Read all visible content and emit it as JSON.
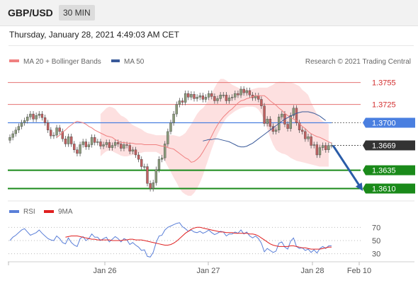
{
  "header": {
    "symbol": "GBP/USD",
    "timeframe": "30 MIN"
  },
  "datetime": "Thursday, January 28, 2021 4:49:03 AM CET",
  "legend": {
    "ma_label": "MA 20 + Bollinger Bands",
    "ma50_label": "MA 50",
    "credit": "Research © 2021 Trading Central",
    "rsi_label": "RSI",
    "rsi_ma_label": "9MA"
  },
  "colors": {
    "ma20": "#f08080",
    "bands_fill": "#fde0e0",
    "ma50": "#3a5a9a",
    "resistance": "#e57373",
    "pivot": "#4a7fe0",
    "support": "#1a8a1a",
    "last_price": "#333333",
    "arrow": "#2a5ca8",
    "rsi": "#5a7fd8",
    "rsi_ma": "#e02020",
    "candle_up": "#8a9a7a",
    "candle_down": "#c06060"
  },
  "chart_data": [
    {
      "type": "candlestick",
      "title": "GBP/USD 30 MIN",
      "ylim": [
        1.3595,
        1.3775
      ],
      "x_ticks": [
        "Jan 26",
        "Jan 27",
        "Jan 28",
        "Feb 10"
      ],
      "levels": [
        {
          "value": 1.3755,
          "label": "1.3755",
          "kind": "resistance"
        },
        {
          "value": 1.3725,
          "label": "1.3725",
          "kind": "resistance"
        },
        {
          "value": 1.37,
          "label": "1.3700",
          "kind": "pivot"
        },
        {
          "value": 1.3669,
          "label": "1.3669",
          "kind": "last"
        },
        {
          "value": 1.3635,
          "label": "1.3635",
          "kind": "support"
        },
        {
          "value": 1.361,
          "label": "1.3610",
          "kind": "support"
        }
      ],
      "close": [
        1.368,
        1.3685,
        1.369,
        1.3695,
        1.37,
        1.3703,
        1.3708,
        1.3712,
        1.3705,
        1.371,
        1.3712,
        1.3707,
        1.37,
        1.369,
        1.3682,
        1.3683,
        1.3693,
        1.3688,
        1.3678,
        1.3671,
        1.3681,
        1.3671,
        1.3663,
        1.3658,
        1.367,
        1.3674,
        1.3667,
        1.367,
        1.368,
        1.3673,
        1.3674,
        1.3668,
        1.367,
        1.3673,
        1.3666,
        1.3669,
        1.3673,
        1.3671,
        1.3665,
        1.367,
        1.3669,
        1.3661,
        1.3663,
        1.3656,
        1.365,
        1.364,
        1.364,
        1.3617,
        1.361,
        1.3618,
        1.3636,
        1.365,
        1.3652,
        1.3671,
        1.3688,
        1.37,
        1.3712,
        1.3725,
        1.373,
        1.3728,
        1.374,
        1.3735,
        1.3739,
        1.3733,
        1.3735,
        1.3737,
        1.3732,
        1.3735,
        1.374,
        1.3736,
        1.373,
        1.3733,
        1.3738,
        1.3738,
        1.373,
        1.3734,
        1.3735,
        1.374,
        1.3738,
        1.3746,
        1.3741,
        1.3744,
        1.3738,
        1.3734,
        1.3737,
        1.3732,
        1.3723,
        1.3699,
        1.3705,
        1.3695,
        1.3688,
        1.369,
        1.3708,
        1.3712,
        1.3698,
        1.3692,
        1.371,
        1.372,
        1.37,
        1.369,
        1.3688,
        1.3678,
        1.3681,
        1.3669,
        1.367,
        1.3656,
        1.3666,
        1.3669,
        1.3663,
        1.3669,
        1.3669
      ],
      "ma20": [
        1.368,
        1.3683,
        1.3687,
        1.369,
        1.3694,
        1.3697,
        1.37,
        1.3702,
        1.3701,
        1.37,
        1.3698,
        1.3695,
        1.3693,
        1.369,
        1.3688,
        1.3686,
        1.3684,
        1.3682,
        1.3681,
        1.368,
        1.3677,
        1.3675,
        1.3673,
        1.3673,
        1.3672,
        1.3672,
        1.3672,
        1.3671,
        1.3671,
        1.3671,
        1.367,
        1.367,
        1.367,
        1.367,
        1.367,
        1.3669,
        1.3668,
        1.3668,
        1.3666,
        1.3665,
        1.3664,
        1.3661,
        1.3658,
        1.3655,
        1.3652,
        1.365,
        1.3646,
        1.3647,
        1.365,
        1.3654,
        1.366,
        1.3667,
        1.3674,
        1.3682,
        1.369,
        1.3697,
        1.3703,
        1.3708,
        1.3712,
        1.3716,
        1.3719,
        1.3723,
        1.3727,
        1.373,
        1.3731,
        1.3733,
        1.3734,
        1.3736,
        1.3737,
        1.3737,
        1.3737,
        1.3737,
        1.3734,
        1.373,
        1.3727,
        1.3724,
        1.372,
        1.3717,
        1.3713,
        1.371,
        1.3707,
        1.3705,
        1.3703,
        1.3699,
        1.3695,
        1.3692,
        1.3688,
        1.3685,
        1.3683,
        1.3681,
        1.368,
        1.3678,
        1.3676,
        1.3674,
        1.3672
      ],
      "ma20_start": 16,
      "upper_band": [
        1.3712,
        1.3716,
        1.372,
        1.3722,
        1.3721,
        1.3719,
        1.3714,
        1.371,
        1.3708,
        1.3705,
        1.37,
        1.3697,
        1.3695,
        1.3693,
        1.3691,
        1.3688,
        1.3686,
        1.3685,
        1.3684,
        1.3683,
        1.3683,
        1.3683,
        1.3683,
        1.3683,
        1.3683,
        1.3683,
        1.3682,
        1.3681,
        1.3683,
        1.3686,
        1.3692,
        1.3698,
        1.3705,
        1.3712,
        1.3717,
        1.372,
        1.3725,
        1.3732,
        1.374,
        1.3748,
        1.3755,
        1.376,
        1.376,
        1.3758,
        1.3755,
        1.3752,
        1.375,
        1.3748,
        1.3746,
        1.3745,
        1.3745,
        1.3745,
        1.3746,
        1.3747,
        1.3748,
        1.3748,
        1.3748,
        1.3748,
        1.375,
        1.3752,
        1.3755,
        1.3756,
        1.3756,
        1.3756,
        1.3755,
        1.3755,
        1.3754,
        1.3752,
        1.375,
        1.3745,
        1.3742,
        1.3738,
        1.3728,
        1.372,
        1.3712,
        1.3706,
        1.3702,
        1.37,
        1.3698
      ],
      "lower_band": [
        1.3654,
        1.3658,
        1.3661,
        1.3662,
        1.3661,
        1.3659,
        1.3657,
        1.3655,
        1.3654,
        1.3654,
        1.3655,
        1.3656,
        1.3657,
        1.3658,
        1.3659,
        1.366,
        1.366,
        1.366,
        1.366,
        1.366,
        1.3658,
        1.3655,
        1.3648,
        1.364,
        1.3633,
        1.3625,
        1.3618,
        1.361,
        1.3605,
        1.3602,
        1.36,
        1.36,
        1.3604,
        1.361,
        1.3618,
        1.3628,
        1.364,
        1.3652,
        1.3664,
        1.3675,
        1.3684,
        1.3692,
        1.37,
        1.3706,
        1.371,
        1.3713,
        1.3716,
        1.3718,
        1.372,
        1.3721,
        1.3722,
        1.3722,
        1.3722,
        1.3721,
        1.3718,
        1.3712,
        1.3703,
        1.3692,
        1.368,
        1.367,
        1.3663,
        1.366,
        1.3658,
        1.3657,
        1.3655,
        1.3652,
        1.365,
        1.3648,
        1.3647,
        1.3646,
        1.3645,
        1.3644,
        1.3643,
        1.3642,
        1.3641,
        1.364,
        1.364,
        1.364,
        1.364
      ],
      "bands_start": 31,
      "ma50": [
        1.3675,
        1.3676,
        1.3677,
        1.3677,
        1.3678,
        1.3678,
        1.3677,
        1.3676,
        1.3675,
        1.3674,
        1.3672,
        1.367,
        1.3668,
        1.3667,
        1.3667,
        1.3668,
        1.367,
        1.3672,
        1.3675,
        1.3678,
        1.3681,
        1.3684,
        1.3687,
        1.369,
        1.3693,
        1.3696,
        1.3699,
        1.3702,
        1.3705,
        1.3707,
        1.3709,
        1.3711,
        1.3713,
        1.3714,
        1.3715,
        1.3715,
        1.3715,
        1.3714,
        1.3713,
        1.3711,
        1.3709,
        1.3706,
        1.3703
      ],
      "ma50_start": 66,
      "projection": {
        "from": 1.3669,
        "to": 1.361
      }
    },
    {
      "type": "line",
      "title": "RSI",
      "ylim": [
        20,
        80
      ],
      "y_ticks": [
        70,
        50,
        30
      ],
      "rsi": [
        50,
        55,
        58,
        62,
        66,
        68,
        63,
        58,
        60,
        62,
        66,
        61,
        57,
        53,
        51,
        50,
        57,
        53,
        47,
        45,
        54,
        47,
        43,
        41,
        53,
        56,
        50,
        53,
        60,
        55,
        55,
        50,
        53,
        55,
        48,
        52,
        56,
        53,
        48,
        53,
        51,
        44,
        47,
        43,
        40,
        35,
        36,
        26,
        25,
        32,
        47,
        57,
        58,
        66,
        70,
        72,
        74,
        76,
        77,
        71,
        68,
        64,
        66,
        63,
        62,
        64,
        61,
        63,
        66,
        62,
        59,
        61,
        64,
        63,
        57,
        60,
        60,
        63,
        61,
        66,
        60,
        63,
        57,
        54,
        57,
        53,
        46,
        33,
        38,
        35,
        32,
        34,
        46,
        48,
        40,
        37,
        49,
        54,
        41,
        38,
        39,
        35,
        37,
        32,
        36,
        31,
        38,
        41,
        38,
        42,
        42
      ],
      "rsi_ma": [
        55,
        56,
        57,
        57,
        57,
        56,
        55,
        54,
        53,
        52,
        52,
        51,
        51,
        51,
        51,
        51,
        50,
        50,
        50,
        50,
        51,
        51,
        52,
        52,
        51,
        51,
        51,
        50,
        49,
        48,
        47,
        46,
        45,
        44,
        43,
        43,
        44,
        46,
        49,
        53,
        57,
        61,
        64,
        67,
        69,
        70,
        70,
        69,
        68,
        67,
        66,
        65,
        64,
        63,
        63,
        62,
        62,
        62,
        61,
        61,
        61,
        61,
        61,
        60,
        60,
        59,
        57,
        54,
        51,
        48,
        45,
        43,
        42,
        41,
        41,
        41,
        41,
        42,
        42,
        41,
        40,
        39,
        39,
        38,
        37,
        37,
        37,
        37,
        38,
        39,
        40,
        40
      ],
      "rsi_ma_start": 19
    }
  ]
}
